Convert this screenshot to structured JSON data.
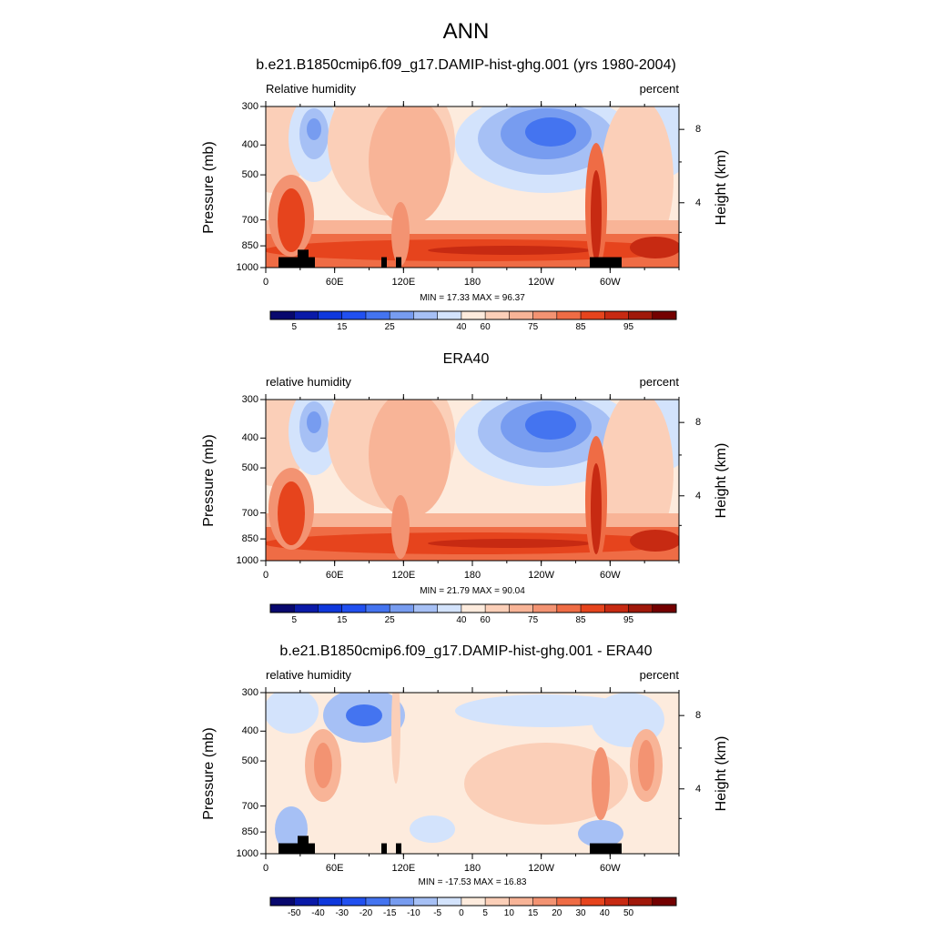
{
  "title": "ANN",
  "colors": {
    "rh_scale": [
      "#08086e",
      "#0a1aa8",
      "#0f38dc",
      "#2150f0",
      "#4474f0",
      "#779cf0",
      "#a6c0f5",
      "#d3e3fc",
      "#fdebdd",
      "#fbcfb8",
      "#f8b497",
      "#f39372",
      "#ef6c45",
      "#e6441d",
      "#c72a12",
      "#a0180a",
      "#740000"
    ],
    "diff_scale": [
      "#08086e",
      "#0a1aa8",
      "#0f38dc",
      "#2150f0",
      "#4474f0",
      "#779cf0",
      "#a6c0f5",
      "#d3e3fc",
      "#fdebdd",
      "#fbcfb8",
      "#f8b497",
      "#f39372",
      "#ef6c45",
      "#e6441d",
      "#c72a12",
      "#a0180a",
      "#740000"
    ],
    "topography": "#000000"
  },
  "panels": [
    {
      "title": "b.e21.B1850cmip6.f09_g17.DAMIP-hist-ghg.001 (yrs 1980-2004)",
      "var_label": "Relative humidity",
      "unit_label": "percent",
      "minmax": "MIN = 17.33  MAX = 96.37",
      "colorbar_labels": [
        "5",
        "15",
        "25",
        "40",
        "60",
        "75",
        "85",
        "95"
      ]
    },
    {
      "title": "ERA40",
      "var_label": "relative humidity",
      "unit_label": "percent",
      "minmax": "MIN = 21.79  MAX = 90.04",
      "colorbar_labels": [
        "5",
        "15",
        "25",
        "40",
        "60",
        "75",
        "85",
        "95"
      ]
    },
    {
      "title": "b.e21.B1850cmip6.f09_g17.DAMIP-hist-ghg.001 - ERA40",
      "var_label": "relative humidity",
      "unit_label": "percent",
      "minmax": "MIN = -17.53  MAX = 16.83",
      "colorbar_labels": [
        "-50",
        "-40",
        "-30",
        "-20",
        "-15",
        "-10",
        "-5",
        "0",
        "5",
        "10",
        "15",
        "20",
        "30",
        "40",
        "50"
      ]
    }
  ],
  "chart_data": [
    {
      "type": "heatmap",
      "title": "b.e21.B1850cmip6.f09_g17.DAMIP-hist-ghg.001 (yrs 1980-2004)",
      "xlabel": "",
      "ylabel": "Pressure (mb)",
      "y2label": "Height (km)",
      "x_ticks": [
        "0",
        "60E",
        "120E",
        "180",
        "120W",
        "60W"
      ],
      "y_ticks": [
        "300",
        "400",
        "500",
        "700",
        "850",
        "1000"
      ],
      "y2_ticks": [
        "8",
        "4"
      ],
      "xlim": [
        0,
        360
      ],
      "ylim": [
        1000,
        300
      ],
      "y_scale": "log",
      "levels": [
        5,
        10,
        15,
        20,
        25,
        30,
        40,
        50,
        60,
        65,
        70,
        75,
        80,
        85,
        90,
        95
      ],
      "min": 17.33,
      "max": 96.37
    },
    {
      "type": "heatmap",
      "title": "ERA40",
      "xlabel": "",
      "ylabel": "Pressure (mb)",
      "y2label": "Height (km)",
      "x_ticks": [
        "0",
        "60E",
        "120E",
        "180",
        "120W",
        "60W"
      ],
      "y_ticks": [
        "300",
        "400",
        "500",
        "700",
        "850",
        "1000"
      ],
      "y2_ticks": [
        "8",
        "4"
      ],
      "xlim": [
        0,
        360
      ],
      "ylim": [
        1000,
        300
      ],
      "y_scale": "log",
      "levels": [
        5,
        10,
        15,
        20,
        25,
        30,
        40,
        50,
        60,
        65,
        70,
        75,
        80,
        85,
        90,
        95
      ],
      "min": 21.79,
      "max": 90.04
    },
    {
      "type": "heatmap",
      "title": "b.e21.B1850cmip6.f09_g17.DAMIP-hist-ghg.001 - ERA40",
      "xlabel": "",
      "ylabel": "Pressure (mb)",
      "y2label": "Height (km)",
      "x_ticks": [
        "0",
        "60E",
        "120E",
        "180",
        "120W",
        "60W"
      ],
      "y_ticks": [
        "300",
        "400",
        "500",
        "700",
        "850",
        "1000"
      ],
      "y2_ticks": [
        "8",
        "4"
      ],
      "xlim": [
        0,
        360
      ],
      "ylim": [
        1000,
        300
      ],
      "y_scale": "log",
      "levels": [
        -50,
        -40,
        -30,
        -20,
        -15,
        -10,
        -5,
        0,
        5,
        10,
        15,
        20,
        30,
        40,
        50
      ],
      "min": -17.53,
      "max": 16.83
    }
  ]
}
